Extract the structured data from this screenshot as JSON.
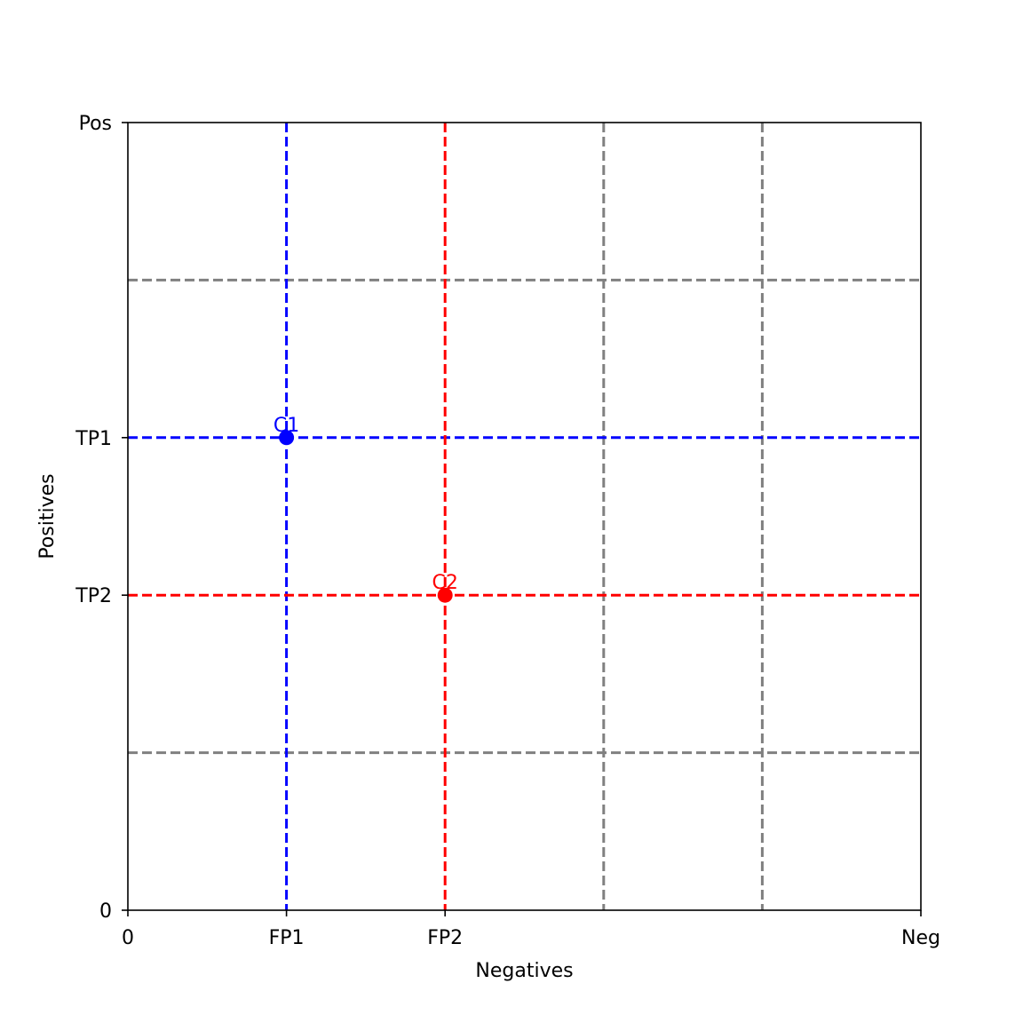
{
  "chart_data": {
    "type": "scatter",
    "title": "",
    "xlabel": "Negatives",
    "ylabel": "Positives",
    "xlim": [
      0,
      5
    ],
    "ylim": [
      0,
      5
    ],
    "x_ticks": [
      {
        "value": 0,
        "label": "0"
      },
      {
        "value": 1,
        "label": "FP1"
      },
      {
        "value": 2,
        "label": "FP2"
      },
      {
        "value": 5,
        "label": "Neg"
      }
    ],
    "y_ticks": [
      {
        "value": 0,
        "label": "0"
      },
      {
        "value": 2,
        "label": "TP2"
      },
      {
        "value": 3,
        "label": "TP1"
      },
      {
        "value": 5,
        "label": "Pos"
      }
    ],
    "grid": {
      "style": "dashed",
      "color": "#808080",
      "vertical": [
        3,
        4
      ],
      "horizontal": [
        1,
        4
      ]
    },
    "series": [
      {
        "label": "C1",
        "x": 1,
        "y": 3,
        "color": "#0000ff"
      },
      {
        "label": "C2",
        "x": 2,
        "y": 2,
        "color": "#ff0000"
      }
    ]
  }
}
